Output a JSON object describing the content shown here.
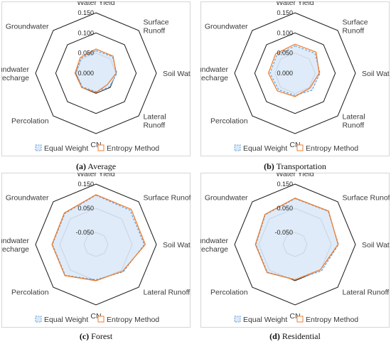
{
  "chart_data": [
    {
      "type": "radar",
      "panel_id": "a",
      "caption_letter": "(a)",
      "caption_text": "Average",
      "axes": [
        "Water Yield",
        "Surface\nRunoff",
        "Soil Water",
        "Lateral\nRunoff",
        "CN",
        "Percolation",
        "Groundwater\nRecharge",
        "Groundwater"
      ],
      "tick_labels": [
        "0.000",
        "0.050",
        "0.100",
        "0.150"
      ],
      "rmin": 0.0,
      "rmax": 0.15,
      "series": [
        {
          "name": "Equal Weight",
          "values": [
            0.056,
            0.058,
            0.052,
            0.048,
            0.046,
            0.048,
            0.05,
            0.052
          ]
        },
        {
          "name": "Entropy Method",
          "values": [
            0.06,
            0.06,
            0.05,
            0.04,
            0.048,
            0.05,
            0.052,
            0.055
          ]
        }
      ]
    },
    {
      "type": "radar",
      "panel_id": "b",
      "caption_letter": "(b)",
      "caption_text": "Transportation",
      "axes": [
        "Water Yield",
        "Surface\nRunoff",
        "Soil Water",
        "Lateral\nRunoff",
        "CN",
        "Percolation",
        "Groundwater\nRecharge",
        "Groundwater"
      ],
      "tick_labels": [
        "0.000",
        "0.050",
        "0.100",
        "0.150"
      ],
      "rmin": 0.0,
      "rmax": 0.15,
      "series": [
        {
          "name": "Equal Weight",
          "values": [
            0.068,
            0.07,
            0.062,
            0.06,
            0.055,
            0.058,
            0.062,
            0.064
          ]
        },
        {
          "name": "Entropy Method",
          "values": [
            0.072,
            0.074,
            0.06,
            0.052,
            0.058,
            0.062,
            0.066,
            0.068
          ]
        }
      ]
    },
    {
      "type": "radar",
      "panel_id": "c",
      "caption_letter": "(c)",
      "caption_text": "Forest",
      "axes": [
        "Water Yield",
        "Surface Runoff",
        "Soil Water",
        "Lateral Runoff",
        "CN",
        "Percolation",
        "Groundwater\nRecharge",
        "Groundwater"
      ],
      "tick_labels": [
        "-0.050",
        "0.050",
        "0.150"
      ],
      "rmin": -0.1,
      "rmax": 0.15,
      "series": [
        {
          "name": "Equal Weight",
          "values": [
            0.104,
            0.1,
            0.1,
            0.06,
            0.046,
            0.08,
            0.08,
            0.082
          ]
        },
        {
          "name": "Entropy Method",
          "values": [
            0.106,
            0.106,
            0.104,
            0.056,
            0.05,
            0.082,
            0.082,
            0.085
          ]
        }
      ]
    },
    {
      "type": "radar",
      "panel_id": "d",
      "caption_letter": "(d)",
      "caption_text": "Residential",
      "axes": [
        "Water Yield",
        "Surface Runoff",
        "Soil Water",
        "Lateral Runoff",
        "CN",
        "Percolation",
        "Groundwater\nRecharge",
        "Groundwater"
      ],
      "tick_labels": [
        "-0.050",
        "0.050",
        "0.150"
      ],
      "rmin": -0.1,
      "rmax": 0.15,
      "series": [
        {
          "name": "Equal Weight",
          "values": [
            0.09,
            0.094,
            0.08,
            0.055,
            0.045,
            0.062,
            0.062,
            0.074
          ]
        },
        {
          "name": "Entropy Method",
          "values": [
            0.092,
            0.096,
            0.078,
            0.048,
            0.046,
            0.064,
            0.064,
            0.076
          ]
        }
      ]
    }
  ],
  "legend": {
    "equal_weight": "Equal Weight",
    "entropy_method": "Entropy Method"
  },
  "colors": {
    "equal_weight_line": "#5b9bd5",
    "equal_weight_fill": "#dbe9f7",
    "entropy_line": "#ed7d31",
    "web": "#1a1a1a",
    "frame": "#d6d6d6"
  }
}
